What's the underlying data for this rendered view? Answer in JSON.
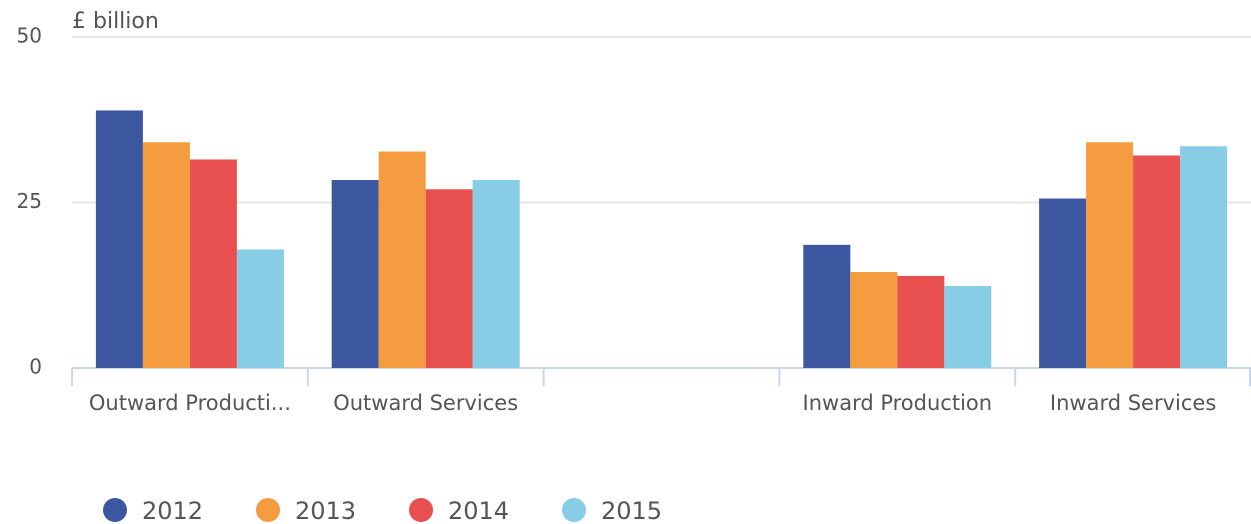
{
  "chart_data": {
    "type": "bar",
    "y_label": "£ billion",
    "categories": [
      "Outward Producti...",
      "Outward Services",
      null,
      "Inward Production",
      "Inward Services"
    ],
    "series": [
      {
        "name": "2012",
        "color": "#3c57a0",
        "values": [
          38.9,
          28.4,
          null,
          18.6,
          25.6
        ]
      },
      {
        "name": "2013",
        "color": "#f59c40",
        "values": [
          34.1,
          32.7,
          null,
          14.5,
          34.1
        ]
      },
      {
        "name": "2014",
        "color": "#e85050",
        "values": [
          31.5,
          27.0,
          null,
          13.9,
          32.1
        ]
      },
      {
        "name": "2015",
        "color": "#87cde6",
        "values": [
          17.9,
          28.4,
          null,
          12.4,
          33.5
        ]
      }
    ],
    "ylim": [
      0,
      50
    ],
    "yticks": [
      0,
      25,
      50
    ],
    "grid": true,
    "legend": "bottom"
  }
}
